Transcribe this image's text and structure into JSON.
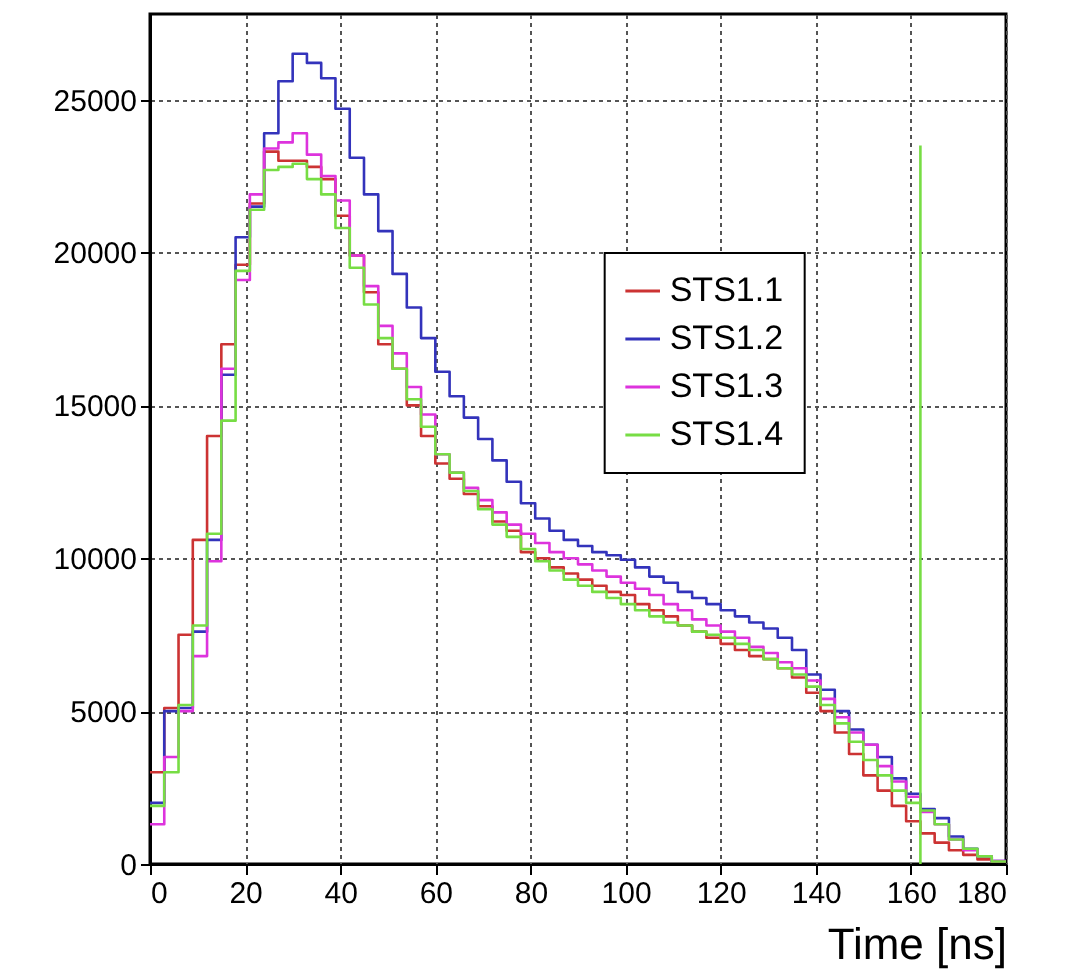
{
  "chart_data": {
    "type": "histogram",
    "xlabel": "Time [ns]",
    "bins": [
      0,
      3,
      6,
      9,
      12,
      15,
      18,
      21,
      24,
      27,
      30,
      33,
      36,
      39,
      42,
      45,
      48,
      51,
      54,
      57,
      60,
      63,
      66,
      69,
      72,
      75,
      78,
      81,
      84,
      87,
      90,
      93,
      96,
      99,
      102,
      105,
      108,
      111,
      114,
      117,
      120,
      123,
      126,
      129,
      132,
      135,
      138,
      141,
      144,
      147,
      150,
      153,
      156,
      159,
      162,
      165,
      168,
      171,
      174,
      177,
      180
    ],
    "series": [
      {
        "name": "STS1.1",
        "color": "#cc3333",
        "values": [
          3000,
          5100,
          7500,
          10600,
          14000,
          17000,
          19600,
          21600,
          23300,
          23000,
          23000,
          22800,
          22400,
          21200,
          19900,
          18700,
          17000,
          16200,
          15000,
          14000,
          13100,
          12600,
          12100,
          11700,
          11200,
          10900,
          10200,
          10000,
          9700,
          9500,
          9300,
          9100,
          8900,
          8800,
          8500,
          8300,
          8100,
          7800,
          7600,
          7400,
          7200,
          7000,
          6800,
          6700,
          6400,
          6100,
          5600,
          5000,
          4300,
          3600,
          2900,
          2400,
          1900,
          1400,
          1000,
          700,
          450,
          300,
          150,
          80
        ]
      },
      {
        "name": "STS1.2",
        "color": "#3333bb",
        "values": [
          2000,
          5000,
          5100,
          7600,
          10600,
          16000,
          20500,
          21500,
          23900,
          25600,
          26500,
          26200,
          25700,
          24700,
          23100,
          21900,
          20700,
          19300,
          18200,
          17200,
          16100,
          15300,
          14600,
          13900,
          13200,
          12500,
          11800,
          11300,
          10900,
          10600,
          10400,
          10200,
          10100,
          9950,
          9700,
          9400,
          9200,
          8900,
          8700,
          8500,
          8300,
          8100,
          7900,
          7700,
          7400,
          7000,
          6200,
          5700,
          5000,
          4400,
          3900,
          3500,
          2800,
          2300,
          1800,
          1500,
          900,
          500,
          250,
          100
        ]
      },
      {
        "name": "STS1.3",
        "color": "#dd33dd",
        "values": [
          1300,
          3500,
          5000,
          6800,
          9900,
          16200,
          19100,
          21900,
          23400,
          23600,
          23900,
          23200,
          22500,
          21700,
          19900,
          18900,
          17600,
          16700,
          15600,
          14700,
          13400,
          12800,
          12300,
          11900,
          11500,
          11100,
          10800,
          10500,
          10200,
          10000,
          9800,
          9600,
          9400,
          9200,
          9000,
          8800,
          8500,
          8300,
          8000,
          7800,
          7600,
          7400,
          7100,
          6900,
          6600,
          6400,
          6000,
          5400,
          4800,
          4300,
          3900,
          3200,
          2700,
          2200,
          1700,
          1300,
          800,
          450,
          250,
          100
        ]
      },
      {
        "name": "STS1.4",
        "color": "#77dd44",
        "values": [
          1900,
          3000,
          5200,
          7800,
          10800,
          14500,
          19400,
          21400,
          22700,
          22800,
          22900,
          22400,
          21900,
          20800,
          19500,
          18300,
          17200,
          16200,
          15200,
          14300,
          13400,
          12800,
          12200,
          11600,
          11100,
          10700,
          10300,
          9900,
          9600,
          9300,
          9100,
          8900,
          8700,
          8500,
          8300,
          8100,
          7900,
          7800,
          7600,
          7500,
          7400,
          7200,
          7000,
          6700,
          6400,
          6200,
          5800,
          5200,
          4600,
          4000,
          3400,
          2900,
          2400,
          2000,
          1750,
          1300,
          800,
          500,
          250,
          80
        ]
      },
      {
        "type": "line",
        "color": "#77dd44",
        "x": [
          162,
          162
        ],
        "values": [
          0,
          23500
        ]
      }
    ],
    "xlim": [
      0,
      180
    ],
    "xticks": [
      0,
      20,
      40,
      60,
      80,
      100,
      120,
      140,
      160,
      180
    ],
    "ylim": [
      0,
      27800
    ],
    "yticks": [
      0,
      5000,
      10000,
      15000,
      20000,
      25000
    ],
    "grid": true,
    "legend": "right"
  }
}
